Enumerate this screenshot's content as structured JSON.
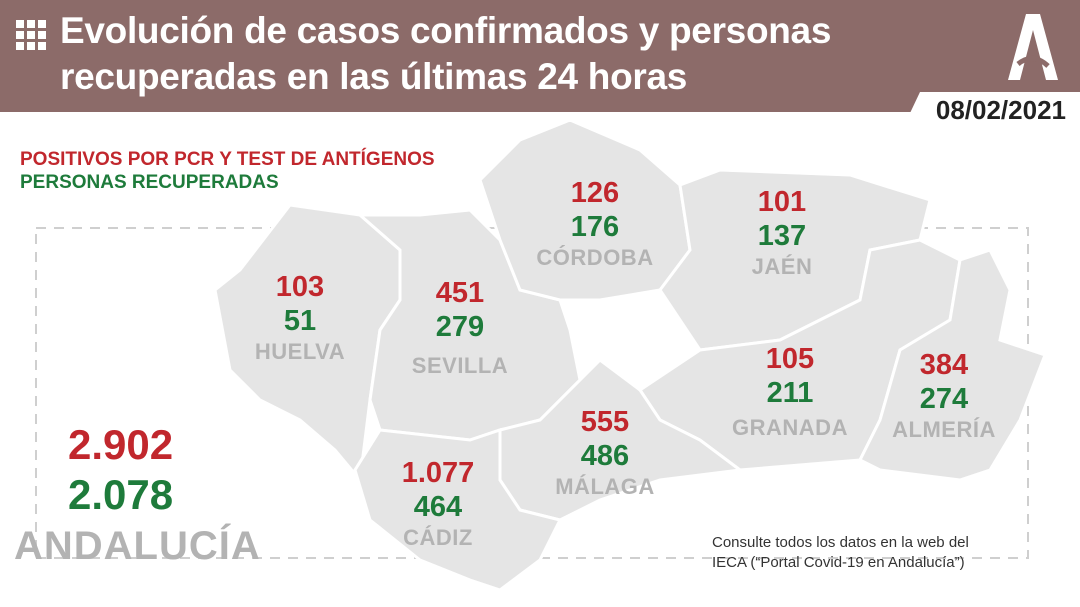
{
  "header": {
    "title_line1": "Evolución de casos confirmados y personas",
    "title_line2": "recuperadas en las últimas 24 horas",
    "date": "08/02/2021",
    "logo": "junta-andalucia-logo",
    "color": "#8c6b69"
  },
  "legend": {
    "positives": "POSITIVOS POR PCR Y TEST DE ANTÍGENOS",
    "recovered": "PERSONAS RECUPERADAS",
    "positives_color": "#c1272d",
    "recovered_color": "#1e7b3b"
  },
  "provinces": [
    {
      "name": "HUELVA",
      "positives": "103",
      "recovered": "51"
    },
    {
      "name": "SEVILLA",
      "positives": "451",
      "recovered": "279"
    },
    {
      "name": "CÓRDOBA",
      "positives": "126",
      "recovered": "176"
    },
    {
      "name": "JAÉN",
      "positives": "101",
      "recovered": "137"
    },
    {
      "name": "GRANADA",
      "positives": "105",
      "recovered": "211"
    },
    {
      "name": "ALMERÍA",
      "positives": "384",
      "recovered": "274"
    },
    {
      "name": "MÁLAGA",
      "positives": "555",
      "recovered": "486"
    },
    {
      "name": "CÁDIZ",
      "positives": "1.077",
      "recovered": "464"
    }
  ],
  "total": {
    "name": "ANDALUCÍA",
    "positives": "2.902",
    "recovered": "2.078"
  },
  "note": {
    "line1": "Consulte todos los datos en la web del",
    "line2": "IECA (“Portal Covid-19 en Andalucía”)"
  }
}
